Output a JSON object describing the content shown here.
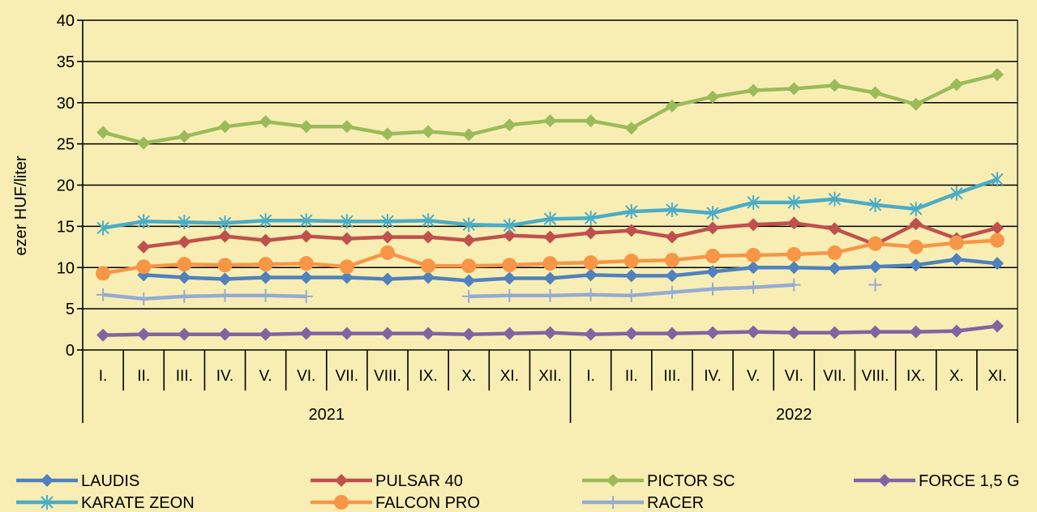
{
  "chart_data": {
    "type": "line",
    "ylabel": "ezer HUF/liter",
    "ylim": [
      0,
      40
    ],
    "y_ticks": [
      "0",
      "5",
      "10",
      "15",
      "20",
      "25",
      "30",
      "35",
      "40"
    ],
    "categories": [
      "I.",
      "II.",
      "III.",
      "IV.",
      "V.",
      "VI.",
      "VII.",
      "VIII.",
      "IX.",
      "X.",
      "XI.",
      "XII.",
      "I.",
      "II.",
      "III.",
      "IV.",
      "V.",
      "VI.",
      "VII.",
      "VIII.",
      "IX.",
      "X.",
      "XI."
    ],
    "years": [
      {
        "label": "2021",
        "count": 12
      },
      {
        "label": "2022",
        "count": 11
      }
    ],
    "grid": "horizontal",
    "legend": "bottom",
    "series": [
      {
        "name": "LAUDIS",
        "color": "#4f81bd",
        "marker": "diamond",
        "values": [
          null,
          9.1,
          8.8,
          8.6,
          8.8,
          8.8,
          8.8,
          8.6,
          8.8,
          8.4,
          8.7,
          8.7,
          9.1,
          9.0,
          9.0,
          9.5,
          10.0,
          10.0,
          9.9,
          10.1,
          10.3,
          11.0,
          10.5
        ]
      },
      {
        "name": "PULSAR 40",
        "color": "#c0504d",
        "marker": "diamond",
        "values": [
          null,
          12.5,
          13.1,
          13.8,
          13.3,
          13.8,
          13.5,
          13.7,
          13.7,
          13.3,
          13.9,
          13.7,
          14.2,
          14.5,
          13.7,
          14.8,
          15.2,
          15.4,
          14.7,
          12.8,
          15.3,
          13.5,
          14.8
        ]
      },
      {
        "name": "PICTOR SC",
        "color": "#9bbb59",
        "marker": "diamond",
        "values": [
          26.4,
          25.1,
          25.9,
          27.1,
          27.7,
          27.1,
          27.1,
          26.2,
          26.5,
          26.1,
          27.3,
          27.8,
          27.8,
          26.9,
          29.6,
          30.7,
          31.5,
          31.7,
          32.1,
          31.2,
          29.8,
          32.2,
          33.4
        ]
      },
      {
        "name": "FORCE 1,5 G",
        "color": "#8064a2",
        "marker": "diamond",
        "values": [
          1.8,
          1.9,
          1.9,
          1.9,
          1.9,
          2.0,
          2.0,
          2.0,
          2.0,
          1.9,
          2.0,
          2.1,
          1.9,
          2.0,
          2.0,
          2.1,
          2.2,
          2.1,
          2.1,
          2.2,
          2.2,
          2.3,
          2.9
        ]
      },
      {
        "name": "KARATE ZEON",
        "color": "#4bacc6",
        "marker": "star",
        "values": [
          14.8,
          15.6,
          15.5,
          15.4,
          15.7,
          15.7,
          15.6,
          15.6,
          15.7,
          15.2,
          15.1,
          15.9,
          16.0,
          16.8,
          17.0,
          16.6,
          17.9,
          17.9,
          18.3,
          17.6,
          17.1,
          19.0,
          20.7
        ]
      },
      {
        "name": "FALCON PRO",
        "color": "#f79646",
        "marker": "circle",
        "values": [
          9.3,
          10.1,
          10.4,
          10.3,
          10.4,
          10.5,
          10.1,
          11.8,
          10.2,
          10.2,
          10.3,
          10.5,
          10.6,
          10.8,
          10.9,
          11.4,
          11.5,
          11.6,
          11.8,
          12.9,
          12.5,
          13.0,
          13.3
        ]
      },
      {
        "name": "RACER",
        "color": "#95abd4",
        "marker": "plus",
        "values": [
          6.7,
          6.2,
          6.5,
          6.6,
          6.6,
          6.5,
          null,
          null,
          null,
          6.5,
          6.6,
          6.6,
          6.7,
          6.6,
          7.0,
          7.4,
          7.6,
          7.9,
          null,
          7.9,
          null,
          null,
          null
        ]
      }
    ]
  }
}
